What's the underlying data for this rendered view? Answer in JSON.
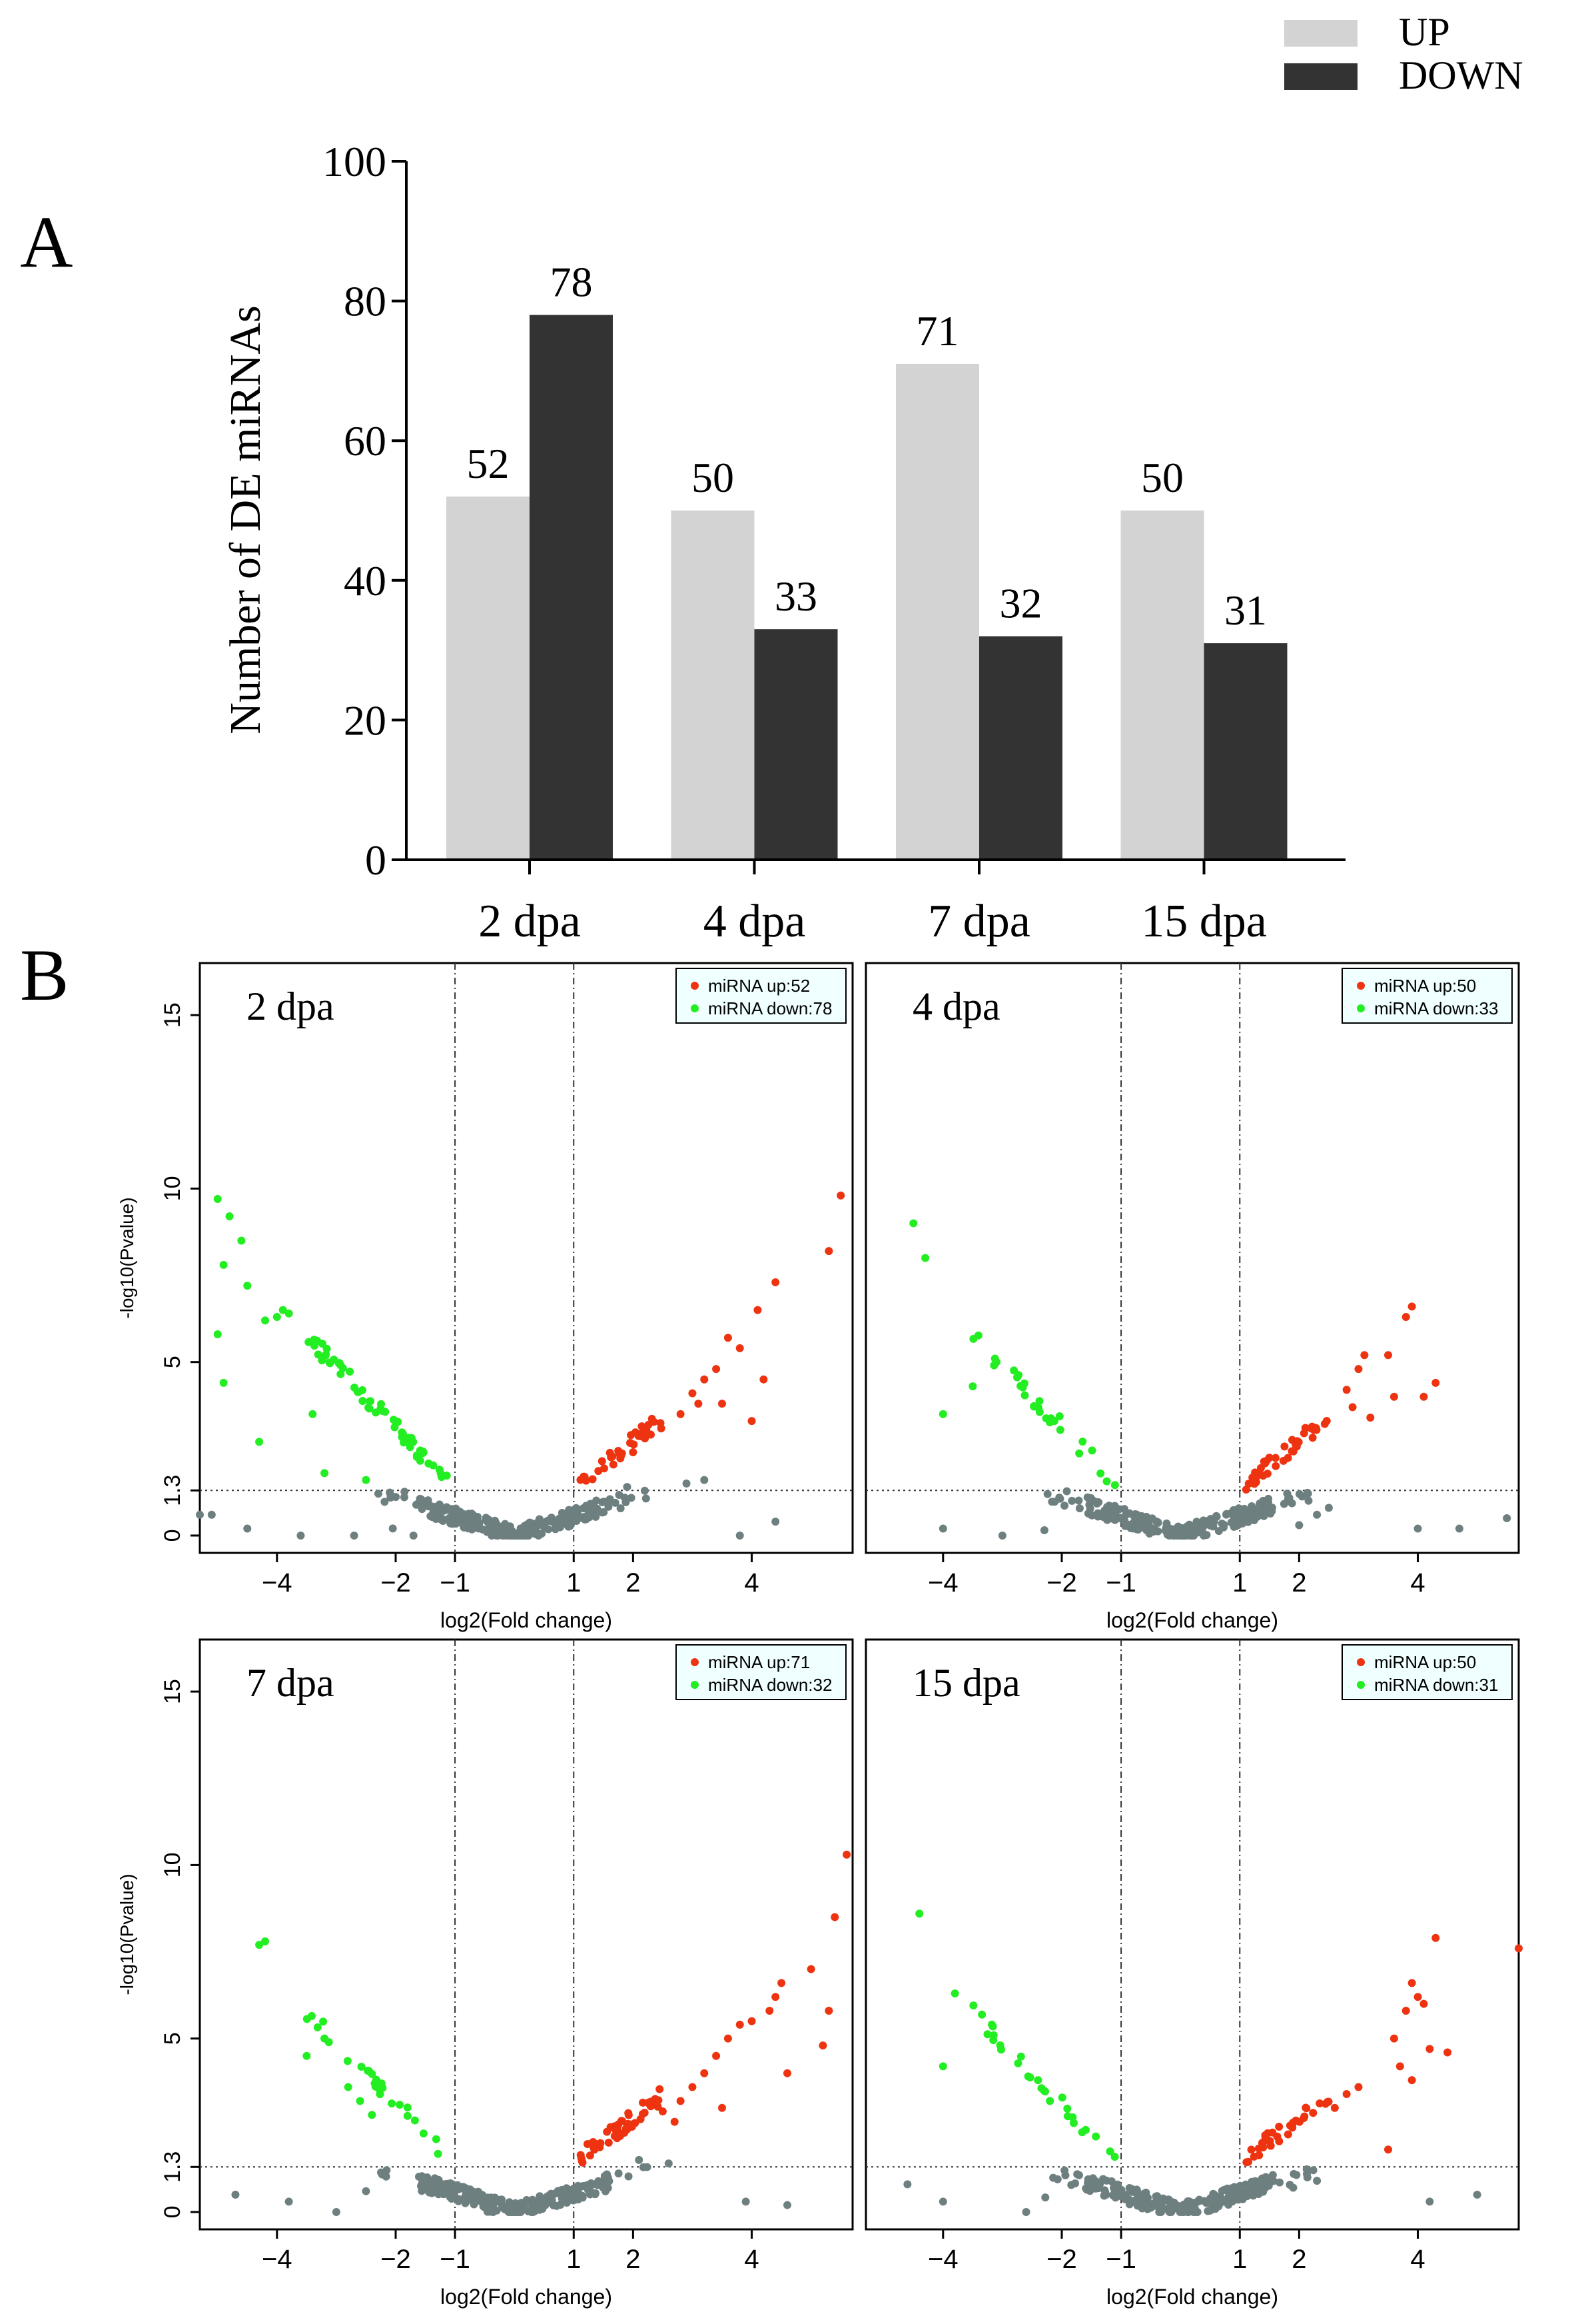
{
  "panel_labels": {
    "a": "A",
    "b": "B"
  },
  "colors": {
    "up_bar": "#d3d3d3",
    "down_bar": "#333333",
    "volcano_up": "#ee3311",
    "volcano_down": "#22ee22",
    "volcano_ns": "#6e7f80",
    "legend_bg": "#f0ffff"
  },
  "chart_data": [
    {
      "type": "bar",
      "title": "",
      "xlabel": "",
      "ylabel": "Number of DE miRNAs",
      "categories": [
        "2 dpa",
        "4 dpa",
        "7 dpa",
        "15 dpa"
      ],
      "series": [
        {
          "name": "UP",
          "values": [
            52,
            50,
            71,
            50
          ]
        },
        {
          "name": "DOWN",
          "values": [
            78,
            33,
            32,
            31
          ]
        }
      ],
      "ylim": [
        0,
        100
      ],
      "yticks": [
        0,
        20,
        40,
        60,
        80,
        100
      ],
      "data_labels": true,
      "legend": "top-right"
    },
    {
      "type": "scatter",
      "title": "2 dpa",
      "xlabel": "log2(Fold change)",
      "ylabel": "-log10(Pvalue)",
      "xlim": [
        -5.3,
        5.7
      ],
      "ylim": [
        -0.5,
        16.5
      ],
      "xticks": [
        -4,
        -2,
        -1,
        1,
        2,
        4
      ],
      "yticks": [
        0,
        1.3,
        5,
        10,
        15
      ],
      "vlines": [
        -1,
        1
      ],
      "hline": 1.3,
      "legend": "top-right",
      "up_label": "miRNA up:52",
      "down_label": "miRNA down:78",
      "up_count": 52,
      "down_count": 78,
      "ns_count": 260,
      "up_extreme": [
        [
          5.5,
          9.8
        ],
        [
          5.3,
          8.2
        ],
        [
          4.4,
          7.3
        ],
        [
          4.1,
          6.5
        ],
        [
          3.8,
          5.4
        ],
        [
          3.6,
          5.7
        ],
        [
          3.4,
          4.8
        ],
        [
          3.2,
          4.5
        ],
        [
          3.5,
          3.8
        ],
        [
          3.1,
          3.8
        ],
        [
          3.0,
          4.1
        ],
        [
          2.8,
          3.5
        ],
        [
          4.2,
          4.5
        ],
        [
          4.0,
          3.3
        ],
        [
          2.2,
          2.8
        ],
        [
          2.0,
          2.4
        ]
      ],
      "down_extreme": [
        [
          -5.0,
          9.7
        ],
        [
          -4.8,
          9.2
        ],
        [
          -4.6,
          8.5
        ],
        [
          -4.9,
          7.8
        ],
        [
          -4.5,
          7.2
        ],
        [
          -3.9,
          6.5
        ],
        [
          -3.8,
          6.4
        ],
        [
          -4.0,
          6.3
        ],
        [
          -4.2,
          6.2
        ],
        [
          -5.0,
          5.8
        ],
        [
          -4.9,
          4.4
        ],
        [
          -4.3,
          2.7
        ],
        [
          -3.4,
          3.5
        ],
        [
          -3.2,
          1.8
        ],
        [
          -2.5,
          1.6
        ]
      ],
      "ns_extreme": [
        [
          -5.3,
          0.6
        ],
        [
          -5.1,
          0.6
        ],
        [
          -4.5,
          0.2
        ],
        [
          -3.6,
          0.0
        ],
        [
          -2.7,
          0.0
        ],
        [
          -1.7,
          0.0
        ],
        [
          3.8,
          0.0
        ],
        [
          4.4,
          0.4
        ],
        [
          2.9,
          1.5
        ],
        [
          3.2,
          1.6
        ],
        [
          1.9,
          1.4
        ]
      ]
    },
    {
      "type": "scatter",
      "title": "4 dpa",
      "xlabel": "log2(Fold change)",
      "ylabel": "",
      "xlim": [
        -5.3,
        5.7
      ],
      "ylim": [
        -0.5,
        16.5
      ],
      "xticks": [
        -4,
        -2,
        -1,
        1,
        2,
        4
      ],
      "yticks": [
        0,
        1.3,
        5,
        10,
        15
      ],
      "vlines": [
        -1,
        1
      ],
      "hline": 1.3,
      "legend": "top-right",
      "up_label": "miRNA up:50",
      "down_label": "miRNA down:33",
      "up_count": 50,
      "down_count": 33,
      "ns_count": 240,
      "up_extreme": [
        [
          3.9,
          6.6
        ],
        [
          3.8,
          6.3
        ],
        [
          3.5,
          5.2
        ],
        [
          3.1,
          5.2
        ],
        [
          3.0,
          4.8
        ],
        [
          4.3,
          4.4
        ],
        [
          4.1,
          4.0
        ],
        [
          2.8,
          4.2
        ],
        [
          3.6,
          4.0
        ],
        [
          2.9,
          3.7
        ],
        [
          3.2,
          3.4
        ],
        [
          2.2,
          3.1
        ]
      ],
      "down_extreme": [
        [
          -4.5,
          9.0
        ],
        [
          -4.3,
          8.0
        ],
        [
          -3.1,
          5.0
        ],
        [
          -3.5,
          4.3
        ],
        [
          -4.0,
          3.5
        ]
      ],
      "ns_extreme": [
        [
          -4.0,
          0.2
        ],
        [
          -3.0,
          0.0
        ],
        [
          4.0,
          0.2
        ],
        [
          4.7,
          0.2
        ],
        [
          5.5,
          0.5
        ],
        [
          2.5,
          0.8
        ],
        [
          2.3,
          0.6
        ],
        [
          2.0,
          0.3
        ]
      ]
    },
    {
      "type": "scatter",
      "title": "7 dpa",
      "xlabel": "log2(Fold change)",
      "ylabel": "-log10(Pvalue)",
      "xlim": [
        -5.3,
        5.7
      ],
      "ylim": [
        -0.5,
        16.5
      ],
      "xticks": [
        -4,
        -2,
        -1,
        1,
        2,
        4
      ],
      "yticks": [
        0,
        1.3,
        5,
        10,
        15
      ],
      "vlines": [
        -1,
        1
      ],
      "hline": 1.3,
      "legend": "top-right",
      "up_label": "miRNA up:71",
      "down_label": "miRNA down:32",
      "up_count": 71,
      "down_count": 32,
      "ns_count": 250,
      "up_extreme": [
        [
          5.6,
          10.3
        ],
        [
          5.4,
          8.5
        ],
        [
          5.0,
          7.0
        ],
        [
          5.3,
          5.8
        ],
        [
          5.2,
          4.8
        ],
        [
          4.5,
          6.6
        ],
        [
          4.4,
          6.2
        ],
        [
          4.3,
          5.8
        ],
        [
          4.0,
          5.5
        ],
        [
          3.8,
          5.4
        ],
        [
          3.6,
          5.0
        ],
        [
          3.4,
          4.5
        ],
        [
          3.2,
          4.0
        ],
        [
          3.0,
          3.6
        ],
        [
          2.8,
          3.2
        ],
        [
          2.5,
          2.9
        ],
        [
          4.6,
          4.0
        ],
        [
          2.7,
          2.6
        ],
        [
          3.5,
          3.0
        ]
      ],
      "down_extreme": [
        [
          -4.2,
          7.8
        ],
        [
          -4.3,
          7.7
        ],
        [
          -3.2,
          5.0
        ],
        [
          -3.5,
          4.5
        ],
        [
          -2.8,
          3.6
        ],
        [
          -2.6,
          3.2
        ],
        [
          -2.4,
          2.8
        ]
      ],
      "ns_extreme": [
        [
          -4.7,
          0.5
        ],
        [
          -3.8,
          0.3
        ],
        [
          -3.0,
          0.0
        ],
        [
          -2.5,
          0.6
        ],
        [
          3.9,
          0.3
        ],
        [
          4.6,
          0.2
        ],
        [
          2.1,
          1.5
        ],
        [
          2.6,
          1.4
        ]
      ]
    },
    {
      "type": "scatter",
      "title": "15 dpa",
      "xlabel": "log2(Fold change)",
      "ylabel": "",
      "xlim": [
        -5.3,
        5.7
      ],
      "ylim": [
        -0.5,
        16.5
      ],
      "xticks": [
        -4,
        -2,
        -1,
        1,
        2,
        4
      ],
      "yticks": [
        0,
        1.3,
        5,
        10,
        15
      ],
      "vlines": [
        -1,
        1
      ],
      "hline": 1.3,
      "legend": "top-right",
      "up_label": "miRNA up:50",
      "down_label": "miRNA down:31",
      "up_count": 50,
      "down_count": 31,
      "ns_count": 240,
      "up_extreme": [
        [
          5.7,
          7.6
        ],
        [
          4.3,
          7.9
        ],
        [
          3.9,
          6.6
        ],
        [
          4.0,
          6.2
        ],
        [
          4.1,
          6.0
        ],
        [
          3.8,
          5.8
        ],
        [
          3.6,
          5.0
        ],
        [
          3.7,
          4.2
        ],
        [
          3.9,
          3.8
        ],
        [
          4.5,
          4.6
        ],
        [
          4.2,
          4.7
        ],
        [
          3.0,
          3.6
        ],
        [
          3.5,
          1.8
        ],
        [
          2.8,
          3.4
        ],
        [
          2.6,
          3.0
        ]
      ],
      "down_extreme": [
        [
          -4.4,
          8.6
        ],
        [
          -3.8,
          6.3
        ],
        [
          -4.0,
          4.2
        ],
        [
          -2.4,
          3.8
        ],
        [
          -2.3,
          3.5
        ],
        [
          -2.2,
          3.2
        ]
      ],
      "ns_extreme": [
        [
          -4.6,
          0.8
        ],
        [
          -4.0,
          0.3
        ],
        [
          -2.6,
          0.0
        ],
        [
          -1.5,
          0.7
        ],
        [
          4.2,
          0.3
        ],
        [
          5.0,
          0.5
        ],
        [
          2.3,
          0.9
        ],
        [
          1.9,
          0.7
        ]
      ]
    }
  ]
}
